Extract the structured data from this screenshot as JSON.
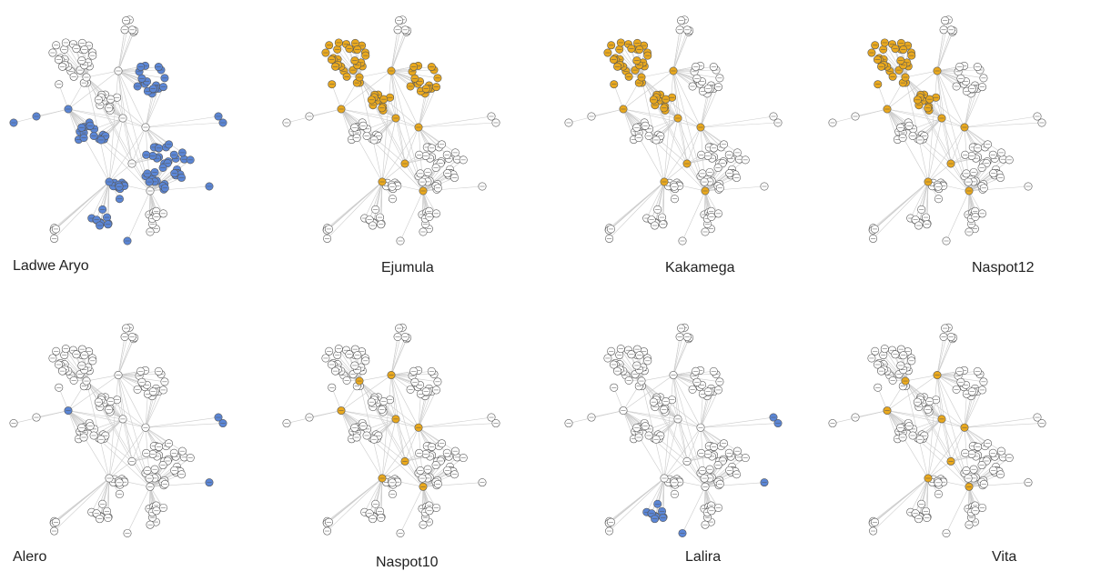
{
  "colors": {
    "blue": "#5b86d6",
    "orange": "#eaa91e",
    "empty": "#ffffff",
    "edge": "#cccccc",
    "stroke": "#555555"
  },
  "panels": [
    {
      "label": "Ladwe Aryo",
      "highlight": "blue",
      "highlighted": [
        "upper",
        "right",
        "left",
        "lower",
        "middle",
        "link"
      ]
    },
    {
      "label": "Ejumula",
      "highlight": "orange",
      "highlighted": [
        "topleft",
        "hub",
        "upper",
        "mid"
      ]
    },
    {
      "label": "Kakamega",
      "highlight": "orange",
      "highlighted": [
        "topleft",
        "hub",
        "mid"
      ]
    },
    {
      "label": "Naspot12",
      "highlight": "orange",
      "highlighted": [
        "topleft",
        "hub",
        "mid"
      ]
    },
    {
      "label": "Alero",
      "highlight": "blue",
      "highlighted": [
        "partial-right",
        "partial-left"
      ]
    },
    {
      "label": "Naspot10",
      "highlight": "orange",
      "highlighted": [
        "partial-topleft",
        "partial-hub"
      ]
    },
    {
      "label": "Lalira",
      "highlight": "blue",
      "highlighted": [
        "partial-right",
        "partial-lower"
      ]
    },
    {
      "label": "Vita",
      "highlight": "orange",
      "highlighted": [
        "partial-topleft",
        "partial-hub"
      ]
    }
  ]
}
